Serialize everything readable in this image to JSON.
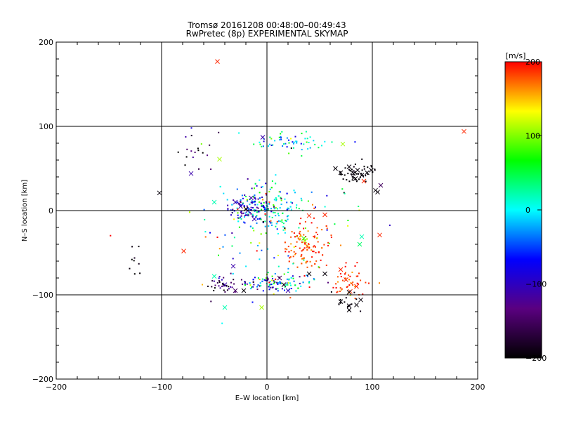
{
  "chart_data": {
    "type": "scatter",
    "title": "Tromsø 20161208 00:48:00–00:49:43",
    "subtitle": "RwPretec (8p) EXPERIMENTAL SKYMAP",
    "xlabel": "E–W location [km]",
    "ylabel": "N–S location [km]",
    "xlim": [
      -200,
      200
    ],
    "ylim": [
      -200,
      200
    ],
    "xticks": [
      -200,
      -100,
      0,
      100,
      200
    ],
    "yticks": [
      -200,
      -100,
      0,
      100,
      200
    ],
    "grid": true,
    "colorbar": {
      "label": "[m/s]",
      "range": [
        -200,
        200
      ],
      "ticks": [
        200,
        100,
        0,
        -100,
        -200
      ],
      "colormap": "rainbow: black-purple-blue-cyan-green-yellow-red",
      "colors": [
        "#000000",
        "#5a0080",
        "#0000ff",
        "#00ffff",
        "#00ff00",
        "#ffff00",
        "#ff0000"
      ]
    },
    "clusters": [
      {
        "desc": "center",
        "x": -2,
        "y": 5,
        "sx": 18,
        "sy": 14,
        "n": 260,
        "v": 0,
        "dv": 60
      },
      {
        "desc": "left-center blue",
        "x": -20,
        "y": 5,
        "sx": 10,
        "sy": 8,
        "n": 60,
        "v": -100,
        "dv": 30
      },
      {
        "desc": "south arc",
        "x": 10,
        "y": -85,
        "sx": 18,
        "sy": 6,
        "n": 140,
        "v": -20,
        "dv": 90
      },
      {
        "desc": "south-west",
        "x": -40,
        "y": -88,
        "sx": 10,
        "sy": 5,
        "n": 40,
        "v": -140,
        "dv": 40
      },
      {
        "desc": "red east-south",
        "x": 38,
        "y": -40,
        "sx": 12,
        "sy": 16,
        "n": 140,
        "v": 185,
        "dv": 15
      },
      {
        "desc": "red far east",
        "x": 80,
        "y": -85,
        "sx": 10,
        "sy": 12,
        "n": 50,
        "v": 185,
        "dv": 15
      },
      {
        "desc": "black north-east",
        "x": 85,
        "y": 45,
        "sx": 9,
        "sy": 6,
        "n": 50,
        "v": -195,
        "dv": 5
      },
      {
        "desc": "north band",
        "x": 25,
        "y": 82,
        "sx": 22,
        "sy": 6,
        "n": 60,
        "v": 0,
        "dv": 50
      },
      {
        "desc": "scatter east",
        "x": 10,
        "y": -15,
        "sx": 40,
        "sy": 30,
        "n": 80,
        "v": 60,
        "dv": 120
      },
      {
        "desc": "black south-east",
        "x": 80,
        "y": -110,
        "sx": 8,
        "sy": 8,
        "n": 14,
        "v": -195,
        "dv": 5
      },
      {
        "desc": "black west",
        "x": -125,
        "y": -62,
        "sx": 6,
        "sy": 10,
        "n": 9,
        "v": -195,
        "dv": 5
      },
      {
        "desc": "north-west sparse",
        "x": -65,
        "y": 75,
        "sx": 12,
        "sy": 15,
        "n": 18,
        "v": -150,
        "dv": 50
      }
    ],
    "markers": [
      {
        "x": -47,
        "y": 177,
        "v": 190
      },
      {
        "x": 187,
        "y": 94,
        "v": 190
      },
      {
        "x": -102,
        "y": 21,
        "v": -195
      },
      {
        "x": -79,
        "y": -48,
        "v": 190
      },
      {
        "x": -72,
        "y": 44,
        "v": -110
      },
      {
        "x": -45,
        "y": 61,
        "v": 110
      },
      {
        "x": -50,
        "y": 10,
        "v": 20
      },
      {
        "x": -4,
        "y": 87,
        "v": -110
      },
      {
        "x": 72,
        "y": 79,
        "v": 110
      },
      {
        "x": 92,
        "y": 35,
        "v": 190
      },
      {
        "x": 108,
        "y": 30,
        "v": -150
      },
      {
        "x": 105,
        "y": 22,
        "v": -195
      },
      {
        "x": 103,
        "y": 24,
        "v": -195
      },
      {
        "x": 65,
        "y": 50,
        "v": -195
      },
      {
        "x": 70,
        "y": 45,
        "v": -195
      },
      {
        "x": 78,
        "y": 52,
        "v": -195
      },
      {
        "x": 82,
        "y": 44,
        "v": -195
      },
      {
        "x": 86,
        "y": 48,
        "v": -195
      },
      {
        "x": 90,
        "y": 42,
        "v": -195
      },
      {
        "x": 95,
        "y": 45,
        "v": -195
      },
      {
        "x": 99,
        "y": 48,
        "v": -195
      },
      {
        "x": 84,
        "y": 38,
        "v": -195
      },
      {
        "x": 55,
        "y": -5,
        "v": 190
      },
      {
        "x": 40,
        "y": -6,
        "v": 190
      },
      {
        "x": 36,
        "y": -36,
        "v": 110
      },
      {
        "x": 90,
        "y": -31,
        "v": 20
      },
      {
        "x": 107,
        "y": -29,
        "v": 190
      },
      {
        "x": 88,
        "y": -40,
        "v": 40
      },
      {
        "x": 70,
        "y": -70,
        "v": 190
      },
      {
        "x": 75,
        "y": -82,
        "v": 190
      },
      {
        "x": 85,
        "y": -90,
        "v": 190
      },
      {
        "x": 79,
        "y": -96,
        "v": 190
      },
      {
        "x": 70,
        "y": -108,
        "v": -195
      },
      {
        "x": 78,
        "y": -113,
        "v": -195
      },
      {
        "x": 78,
        "y": -118,
        "v": -195
      },
      {
        "x": 85,
        "y": -112,
        "v": -195
      },
      {
        "x": 89,
        "y": -106,
        "v": -195
      },
      {
        "x": 78,
        "y": -97,
        "v": -195
      },
      {
        "x": 55,
        "y": -75,
        "v": -195
      },
      {
        "x": 40,
        "y": -75,
        "v": -195
      },
      {
        "x": 16,
        "y": -88,
        "v": -195
      },
      {
        "x": -32,
        "y": -66,
        "v": -110
      },
      {
        "x": -50,
        "y": -78,
        "v": 20
      },
      {
        "x": -40,
        "y": -88,
        "v": -110
      },
      {
        "x": -30,
        "y": -95,
        "v": -150
      },
      {
        "x": -22,
        "y": -95,
        "v": -195
      },
      {
        "x": -40,
        "y": -115,
        "v": 20
      },
      {
        "x": -5,
        "y": -115,
        "v": 110
      },
      {
        "x": -18,
        "y": 0,
        "v": -110
      },
      {
        "x": -12,
        "y": -10,
        "v": -110
      },
      {
        "x": -25,
        "y": 5,
        "v": -110
      },
      {
        "x": -30,
        "y": 10,
        "v": -110
      },
      {
        "x": -20,
        "y": 2,
        "v": -195
      },
      {
        "x": -15,
        "y": 15,
        "v": -110
      },
      {
        "x": 35,
        "y": -33,
        "v": 80
      },
      {
        "x": 20,
        "y": -95,
        "v": -110
      },
      {
        "x": 12,
        "y": -80,
        "v": -150
      }
    ]
  }
}
